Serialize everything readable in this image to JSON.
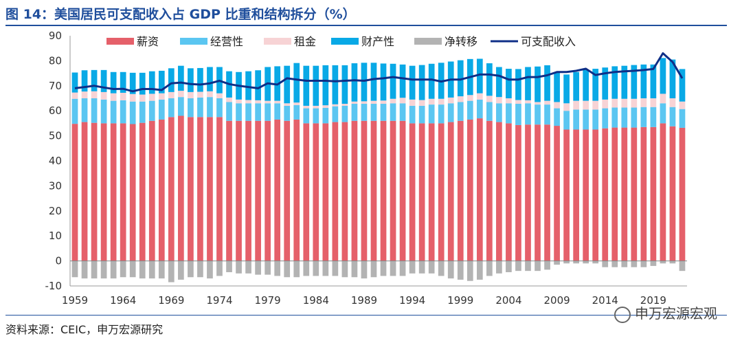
{
  "title": "图 14：美国居民可支配收入占 GDP 比重和结构拆分（%）",
  "source": "资料来源：CEIC，申万宏源研究",
  "watermark": "申万宏源宏观",
  "chart_data": {
    "type": "bar",
    "stacked": true,
    "ylim": [
      -10,
      90
    ],
    "yticks": [
      -10,
      0,
      10,
      20,
      30,
      40,
      50,
      60,
      70,
      80,
      90
    ],
    "xtick_labels": [
      "1959",
      "1964",
      "1969",
      "1974",
      "1979",
      "1984",
      "1989",
      "1994",
      "1999",
      "2004",
      "2009",
      "2014",
      "2019"
    ],
    "legend_position": "top",
    "x": [
      1959,
      1960,
      1961,
      1962,
      1963,
      1964,
      1965,
      1966,
      1967,
      1968,
      1969,
      1970,
      1971,
      1972,
      1973,
      1974,
      1975,
      1976,
      1977,
      1978,
      1979,
      1980,
      1981,
      1982,
      1983,
      1984,
      1985,
      1986,
      1987,
      1988,
      1989,
      1990,
      1991,
      1992,
      1993,
      1994,
      1995,
      1996,
      1997,
      1998,
      1999,
      2000,
      2001,
      2002,
      2003,
      2004,
      2005,
      2006,
      2007,
      2008,
      2009,
      2010,
      2011,
      2012,
      2013,
      2014,
      2015,
      2016,
      2017,
      2018,
      2019,
      2020,
      2021,
      2022
    ],
    "series": [
      {
        "name": "薪资",
        "color": "#e5606a",
        "values": [
          54.8,
          55.5,
          55.2,
          55.0,
          55.0,
          55.0,
          54.7,
          55.2,
          56.0,
          56.5,
          57.5,
          58.0,
          57.5,
          57.5,
          57.5,
          57.5,
          56.0,
          56.0,
          56.0,
          56.0,
          56.0,
          56.5,
          56.0,
          56.5,
          55.0,
          55.0,
          55.0,
          55.5,
          55.5,
          56.0,
          56.0,
          56.0,
          56.0,
          56.0,
          56.0,
          55.0,
          55.0,
          55.0,
          55.0,
          55.5,
          56.0,
          56.5,
          57.0,
          56.0,
          55.5,
          55.0,
          54.3,
          54.5,
          54.5,
          54.5,
          54.0,
          52.5,
          52.5,
          52.5,
          52.5,
          53.0,
          53.3,
          53.3,
          53.3,
          53.5,
          53.5,
          55.0,
          53.8,
          53.2
        ]
      },
      {
        "name": "经营性",
        "color": "#5bc6f1",
        "values": [
          10.0,
          9.5,
          9.8,
          9.5,
          9.0,
          9.2,
          9.0,
          8.5,
          8.0,
          8.0,
          7.5,
          7.5,
          7.5,
          7.8,
          8.0,
          7.5,
          7.5,
          7.0,
          7.0,
          7.0,
          7.0,
          6.5,
          6.0,
          5.8,
          6.0,
          6.0,
          6.2,
          6.3,
          6.5,
          6.8,
          6.8,
          6.8,
          6.8,
          7.0,
          7.0,
          7.0,
          7.0,
          7.5,
          7.5,
          7.5,
          7.5,
          7.5,
          7.5,
          7.5,
          7.5,
          8.0,
          8.5,
          8.5,
          8.0,
          8.0,
          7.0,
          7.5,
          8.0,
          8.0,
          8.0,
          8.0,
          8.0,
          8.0,
          8.0,
          8.0,
          8.0,
          8.0,
          7.7,
          7.5
        ]
      },
      {
        "name": "租金",
        "color": "#f7d3d5",
        "values": [
          2.5,
          2.7,
          2.8,
          3.0,
          3.0,
          3.0,
          3.0,
          2.8,
          2.8,
          2.5,
          2.5,
          2.5,
          2.5,
          2.3,
          2.3,
          2.0,
          1.8,
          1.5,
          1.3,
          1.2,
          1.0,
          1.0,
          1.0,
          1.0,
          1.0,
          1.0,
          1.0,
          0.8,
          0.8,
          0.9,
          1.0,
          1.2,
          1.3,
          1.8,
          2.2,
          2.5,
          2.3,
          2.3,
          2.3,
          2.3,
          2.3,
          2.3,
          2.5,
          2.5,
          2.5,
          2.0,
          1.5,
          1.2,
          1.0,
          1.5,
          2.5,
          3.0,
          3.5,
          3.5,
          3.5,
          3.5,
          3.5,
          3.5,
          3.5,
          3.5,
          3.5,
          3.8,
          3.5,
          3.0
        ]
      },
      {
        "name": "财产性",
        "color": "#09a9e6",
        "values": [
          8.0,
          8.5,
          8.5,
          8.8,
          8.5,
          8.3,
          8.5,
          8.7,
          9.0,
          9.0,
          9.5,
          10.0,
          9.5,
          9.5,
          9.7,
          10.5,
          10.5,
          11.0,
          11.5,
          12.0,
          13.5,
          13.8,
          15.0,
          15.8,
          16.0,
          16.0,
          16.0,
          15.6,
          15.4,
          15.3,
          15.4,
          15.2,
          14.8,
          14.0,
          13.3,
          13.5,
          14.0,
          14.0,
          14.4,
          14.4,
          14.4,
          14.4,
          13.8,
          13.0,
          12.0,
          11.8,
          12.4,
          13.3,
          14.2,
          14.2,
          12.0,
          11.5,
          11.5,
          12.5,
          12.8,
          12.8,
          13.0,
          13.2,
          13.5,
          13.5,
          13.5,
          14.3,
          15.5,
          13.0
        ]
      },
      {
        "name": "净转移",
        "color": "#b3b3b3",
        "values": [
          -6.5,
          -7.0,
          -7.0,
          -7.0,
          -7.0,
          -6.5,
          -6.5,
          -7.0,
          -7.0,
          -7.0,
          -8.5,
          -7.5,
          -6.5,
          -6.5,
          -7.0,
          -6.0,
          -4.5,
          -5.0,
          -5.0,
          -5.5,
          -5.5,
          -6.0,
          -6.5,
          -6.5,
          -6.0,
          -6.0,
          -6.0,
          -6.0,
          -6.5,
          -6.5,
          -7.0,
          -6.5,
          -6.0,
          -6.0,
          -6.0,
          -5.0,
          -5.0,
          -5.0,
          -6.0,
          -7.0,
          -7.5,
          -8.0,
          -7.5,
          -6.0,
          -5.0,
          -4.5,
          -4.0,
          -4.0,
          -4.0,
          -3.5,
          -1.5,
          -1.0,
          -1.0,
          -1.0,
          -1.0,
          -2.5,
          -2.5,
          -2.5,
          -2.5,
          -2.5,
          -2.0,
          -1.0,
          -1.0,
          -4.0
        ]
      },
      {
        "name": "可支配收入",
        "color": "#0f2f87",
        "type": "line",
        "values": [
          69.0,
          69.5,
          70.0,
          69.3,
          68.7,
          68.8,
          67.8,
          68.7,
          68.7,
          68.3,
          71.0,
          71.3,
          70.7,
          70.5,
          71.0,
          72.0,
          70.7,
          70.0,
          69.5,
          69.0,
          71.0,
          70.5,
          73.0,
          72.5,
          72.0,
          72.0,
          72.0,
          71.8,
          72.0,
          72.2,
          72.0,
          72.7,
          73.0,
          73.5,
          73.0,
          72.5,
          72.5,
          72.5,
          71.7,
          72.5,
          72.5,
          73.5,
          74.5,
          74.5,
          74.0,
          72.5,
          72.5,
          73.5,
          73.5,
          74.2,
          75.5,
          75.5,
          76.0,
          76.8,
          74.3,
          75.0,
          75.5,
          75.8,
          76.0,
          76.3,
          76.7,
          83.0,
          79.5,
          73.0
        ]
      }
    ]
  }
}
